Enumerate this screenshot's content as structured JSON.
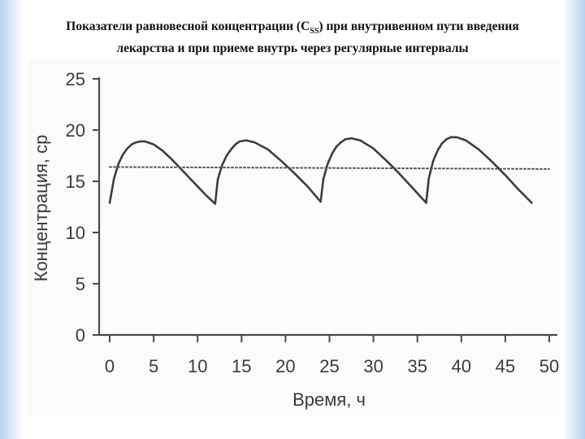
{
  "title": {
    "line1_pre": "Показатели  равновесной  концентрации  (C",
    "line1_sub": "SS",
    "line1_post": ")  при внутривенном пути введения",
    "line2": "лекарства и при приеме внутрь через регулярные интервалы"
  },
  "chart_data": {
    "type": "line",
    "xlabel": "Время, ч",
    "ylabel": "Концентрация, ср",
    "xlim": [
      0,
      50
    ],
    "ylim": [
      0,
      25
    ],
    "x_ticks": [
      0,
      5,
      10,
      15,
      20,
      25,
      30,
      35,
      40,
      45,
      50
    ],
    "y_ticks": [
      0,
      5,
      10,
      15,
      20,
      25
    ],
    "grid": false,
    "series": [
      {
        "style": "solid",
        "x": [
          0,
          0.5,
          1,
          1.5,
          2,
          2.5,
          3,
          3.5,
          4,
          5,
          6,
          7,
          8,
          9,
          10,
          11,
          12,
          12.3,
          12.8,
          13.3,
          13.8,
          14.3,
          14.8,
          15.5,
          16.5,
          18,
          19.5,
          21,
          22.5,
          24,
          24.3,
          24.8,
          25.3,
          25.8,
          26.3,
          26.8,
          27.5,
          28.5,
          30,
          31.5,
          33,
          34.5,
          36,
          36.3,
          36.8,
          37.3,
          37.8,
          38.3,
          38.8,
          39.5,
          40.5,
          42,
          43.5,
          45,
          46.5,
          48
        ],
        "y": [
          12.9,
          15.3,
          16.7,
          17.6,
          18.2,
          18.6,
          18.8,
          18.9,
          18.9,
          18.6,
          18.0,
          17.2,
          16.3,
          15.4,
          14.5,
          13.6,
          12.8,
          15.2,
          16.6,
          17.5,
          18.1,
          18.6,
          18.9,
          19.0,
          18.8,
          18.1,
          17.0,
          15.8,
          14.5,
          13.0,
          15.2,
          16.7,
          17.7,
          18.4,
          18.8,
          19.1,
          19.2,
          19.0,
          18.2,
          17.0,
          15.7,
          14.3,
          12.9,
          15.3,
          17.0,
          18.0,
          18.7,
          19.1,
          19.3,
          19.3,
          19.0,
          18.1,
          16.9,
          15.6,
          14.2,
          12.9
        ]
      },
      {
        "style": "dotted",
        "x": [
          0,
          50
        ],
        "y": [
          16.4,
          16.2
        ]
      }
    ]
  }
}
